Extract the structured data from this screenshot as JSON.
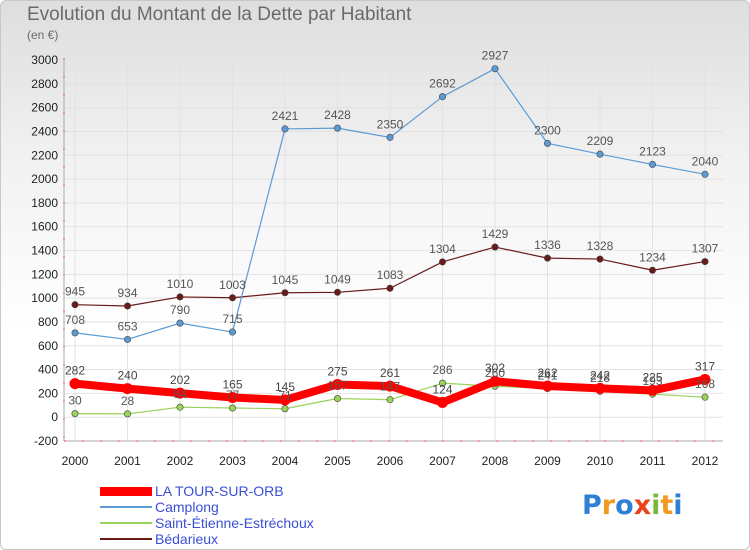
{
  "chart_data": {
    "type": "line",
    "title": "Evolution du Montant de la Dette par Habitant",
    "ylabel": "(en €)",
    "xlabel": "",
    "ylim": [
      -200,
      3000
    ],
    "yticks": [
      -200,
      0,
      200,
      400,
      600,
      800,
      1000,
      1200,
      1400,
      1600,
      1800,
      2000,
      2200,
      2400,
      2600,
      2800,
      3000
    ],
    "categories": [
      "2000",
      "2001",
      "2002",
      "2003",
      "2004",
      "2005",
      "2006",
      "2007",
      "2008",
      "2009",
      "2010",
      "2011",
      "2012"
    ],
    "grid": true,
    "legend_position": "bottom-left",
    "series": [
      {
        "name": "Bédarieux",
        "color": "#6b1a1a",
        "values": [
          945,
          934,
          1010,
          1003,
          1045,
          1049,
          1083,
          1304,
          1429,
          1336,
          1328,
          1234,
          1307
        ],
        "labels": [
          "945",
          "934",
          "1010",
          "1003",
          "1045",
          "1049",
          "1083",
          "1304",
          "1429",
          "1336",
          "1328",
          "1234",
          "1307"
        ]
      },
      {
        "name": "Camplong",
        "color": "#5b9bd5",
        "values": [
          708,
          653,
          790,
          715,
          2421,
          2428,
          2350,
          2692,
          2927,
          2300,
          2209,
          2123,
          2040
        ],
        "labels": [
          "708",
          "653",
          "790",
          "715",
          "2421",
          "2428",
          "2350",
          "2692",
          "2927",
          "2300",
          "2209",
          "2123",
          "2040"
        ]
      },
      {
        "name": "Saint-Étienne-Estréchoux",
        "color": "#9ad35a",
        "values": [
          30,
          28,
          84,
          77,
          71,
          157,
          147,
          286,
          260,
          241,
          218,
          193,
          168
        ],
        "labels": [
          "30",
          "28",
          "84",
          "77",
          "71",
          "157",
          "147",
          "286",
          "260",
          "241",
          "218",
          "193",
          "168"
        ]
      },
      {
        "name": "LA TOUR-SUR-ORB",
        "color": "#ff0000",
        "values": [
          282,
          240,
          202,
          165,
          145,
          275,
          261,
          124,
          302,
          262,
          242,
          225,
          317
        ],
        "labels": [
          "282",
          "240",
          "202",
          "165",
          "145",
          "275",
          "261",
          "124",
          "302",
          "262",
          "242",
          "225",
          "317"
        ]
      }
    ]
  },
  "legend": [
    {
      "label": "LA TOUR-SUR-ORB",
      "color": "#ff0000"
    },
    {
      "label": "Camplong",
      "color": "#5b9bd5"
    },
    {
      "label": "Saint-Étienne-Estréchoux",
      "color": "#9ad35a"
    },
    {
      "label": "Bédarieux",
      "color": "#6b1a1a"
    }
  ],
  "logo": {
    "letters": [
      "P",
      "r",
      "o",
      "x",
      "i",
      "t",
      "i"
    ],
    "colors": [
      "#2e7fd6",
      "#f29a1f",
      "#2e7fd6",
      "#e8431c",
      "#7ab83a",
      "#f29a1f",
      "#2e7fd6"
    ]
  }
}
